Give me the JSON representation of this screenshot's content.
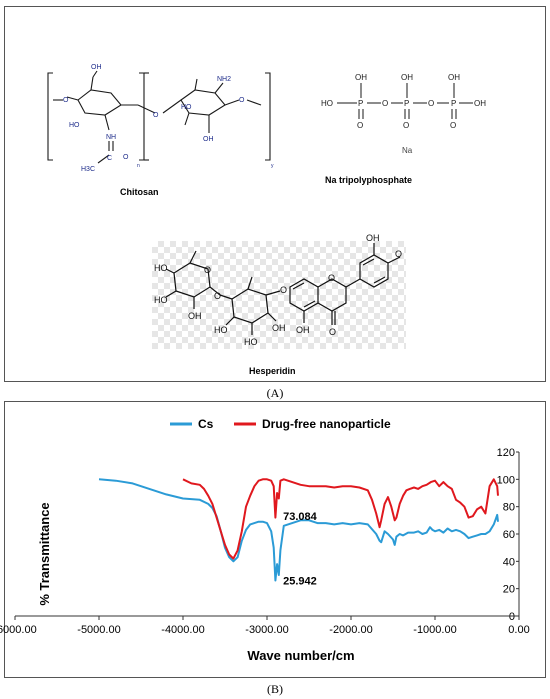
{
  "panel_a": {
    "caption": "(A)",
    "chitosan": {
      "name": "Chitosan",
      "atoms": {
        "oh_top": "OH",
        "ho_left": "HO",
        "o_left": "O",
        "nh": "NH",
        "c": "C",
        "o_carbonyl": "O",
        "h3c": "H3C",
        "n_sub": "n",
        "o_link": "O",
        "ho_right": "HO",
        "nh2": "NH2",
        "oh_bottom": "OH",
        "o_right": "O",
        "y_sub": "y"
      }
    },
    "tripolyphosphate": {
      "name": "Na tripolyphosphate",
      "counterion": "Na",
      "atoms": {
        "ho": "HO",
        "p": "P",
        "o": "O",
        "oh": "OH"
      }
    },
    "hesperidin": {
      "name": "Hesperidin",
      "atoms": {
        "ho": "HO",
        "o": "O",
        "oh": "OH",
        "och3": "O"
      }
    }
  },
  "panel_b": {
    "caption": "(B)",
    "chart_data": {
      "type": "line",
      "xlabel": "Wave number/cm",
      "ylabel": "% Transmittance",
      "xlim": [
        -6000,
        0
      ],
      "ylim": [
        0,
        120
      ],
      "x_ticks": [
        "-6000.00",
        "-5000.00",
        "-4000.00",
        "-3000.00",
        "-2000.00",
        "-1000.00",
        "0.00"
      ],
      "y_ticks": [
        "0",
        "20",
        "40",
        "60",
        "80",
        "100",
        "120"
      ],
      "legend_position": "top",
      "series": [
        {
          "name": "Cs",
          "color": "#2b9bd6",
          "x": [
            -5000,
            -4800,
            -4600,
            -4400,
            -4200,
            -4000,
            -3800,
            -3700,
            -3650,
            -3600,
            -3550,
            -3500,
            -3450,
            -3400,
            -3350,
            -3300,
            -3250,
            -3200,
            -3150,
            -3100,
            -3050,
            -3000,
            -2950,
            -2920,
            -2900,
            -2880,
            -2860,
            -2840,
            -2800,
            -2700,
            -2600,
            -2500,
            -2400,
            -2300,
            -2200,
            -2100,
            -2000,
            -1900,
            -1800,
            -1700,
            -1660,
            -1640,
            -1600,
            -1560,
            -1500,
            -1480,
            -1460,
            -1420,
            -1380,
            -1320,
            -1250,
            -1200,
            -1150,
            -1100,
            -1060,
            -1030,
            -1000,
            -950,
            -900,
            -850,
            -800,
            -750,
            -700,
            -650,
            -600,
            -550,
            -500,
            -450,
            -400,
            -350,
            -300,
            -260,
            -250
          ],
          "y": [
            100,
            99,
            97,
            93,
            89,
            86,
            85,
            82,
            79,
            73,
            62,
            50,
            43,
            40,
            43,
            55,
            63,
            67,
            68,
            69,
            69,
            68,
            62,
            50,
            26,
            38,
            30,
            48,
            66,
            68,
            70,
            70,
            68,
            68,
            67,
            68,
            67,
            68,
            67,
            60,
            55,
            54,
            62,
            60,
            56,
            52,
            58,
            60,
            59,
            61,
            61,
            62,
            60,
            61,
            65,
            63,
            62,
            63,
            61,
            64,
            62,
            63,
            62,
            60,
            57,
            58,
            59,
            60,
            60,
            62,
            67,
            74,
            69
          ]
        },
        {
          "name": "Drug-free nanoparticle",
          "color": "#e0181e",
          "x": [
            -4000,
            -3900,
            -3800,
            -3750,
            -3700,
            -3650,
            -3600,
            -3550,
            -3500,
            -3450,
            -3400,
            -3350,
            -3300,
            -3250,
            -3200,
            -3150,
            -3100,
            -3050,
            -3000,
            -2950,
            -2920,
            -2900,
            -2880,
            -2860,
            -2840,
            -2800,
            -2700,
            -2600,
            -2500,
            -2400,
            -2300,
            -2200,
            -2100,
            -2000,
            -1900,
            -1800,
            -1750,
            -1700,
            -1660,
            -1640,
            -1600,
            -1560,
            -1520,
            -1500,
            -1480,
            -1460,
            -1420,
            -1380,
            -1340,
            -1300,
            -1250,
            -1200,
            -1150,
            -1100,
            -1050,
            -1000,
            -950,
            -900,
            -850,
            -800,
            -750,
            -700,
            -650,
            -600,
            -550,
            -500,
            -450,
            -400,
            -350,
            -300,
            -260,
            -250
          ],
          "y": [
            100,
            97,
            96,
            93,
            88,
            82,
            72,
            62,
            52,
            45,
            42,
            48,
            62,
            80,
            88,
            95,
            99,
            100,
            100,
            99,
            95,
            72,
            90,
            86,
            99,
            100,
            98,
            96,
            95,
            95,
            95,
            94,
            95,
            95,
            94,
            92,
            85,
            75,
            65,
            70,
            82,
            87,
            80,
            75,
            70,
            72,
            82,
            88,
            92,
            93,
            94,
            93,
            95,
            96,
            98,
            99,
            95,
            98,
            95,
            93,
            85,
            83,
            80,
            72,
            73,
            78,
            80,
            75,
            95,
            100,
            95,
            88
          ]
        }
      ],
      "annotations": [
        {
          "text": "73.084",
          "x": -2880,
          "y": 73
        },
        {
          "text": "25.942",
          "x": -2880,
          "y": 26
        }
      ]
    }
  }
}
